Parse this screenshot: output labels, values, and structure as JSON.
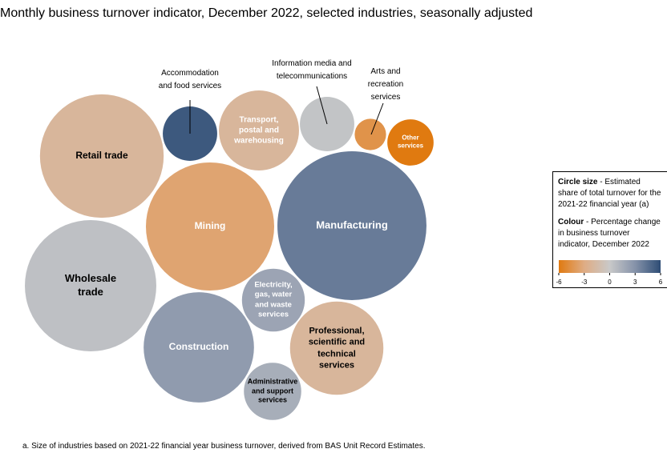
{
  "chart_data": {
    "type": "packed-bubble",
    "title": "Monthly business turnover indicator, December 2022, selected industries, seasonally adjusted",
    "footnote": "a. Size of industries based on 2021-22 financial year business turnover, derived from BAS Unit Record Estimates.",
    "size_legend_title": "Circle size",
    "size_legend_text": "- Estimated share of total turnover for the 2021-22 financial year (a)",
    "color_legend_title": "Colour",
    "color_legend_text": "- Percentage change in business turnover indicator, December 2022",
    "colorlim": [
      -6,
      6
    ],
    "colorticks": [
      -6,
      -3,
      0,
      3,
      6
    ],
    "color_scale": [
      "#e07a10",
      "#dfac84",
      "#c9c9c9",
      "#8592a9",
      "#2e4d75"
    ],
    "items": [
      {
        "name": "Retail trade",
        "size": 9.3,
        "change": -2
      },
      {
        "name": "Accommodation and food services",
        "size": 1.8,
        "change": 5.5
      },
      {
        "name": "Transport, postal and warehousing",
        "size": 3.9,
        "change": -2
      },
      {
        "name": "Information media and telecommunications",
        "size": 1.8,
        "change": 0.3
      },
      {
        "name": "Arts and recreation services",
        "size": 0.6,
        "change": -4.5
      },
      {
        "name": "Other services",
        "size": 1.3,
        "change": -6
      },
      {
        "name": "Mining",
        "size": 10.0,
        "change": -3.5
      },
      {
        "name": "Manufacturing",
        "size": 13.5,
        "change": 4
      },
      {
        "name": "Wholesale trade",
        "size": 10.5,
        "change": 0.5
      },
      {
        "name": "Electricity, gas, water and waste services",
        "size": 2.4,
        "change": 2
      },
      {
        "name": "Construction",
        "size": 7.4,
        "change": 2.5
      },
      {
        "name": "Professional, scientific and technical services",
        "size": 5.3,
        "change": -2
      },
      {
        "name": "Administrative and support services",
        "size": 2.0,
        "change": 1.5
      }
    ]
  }
}
